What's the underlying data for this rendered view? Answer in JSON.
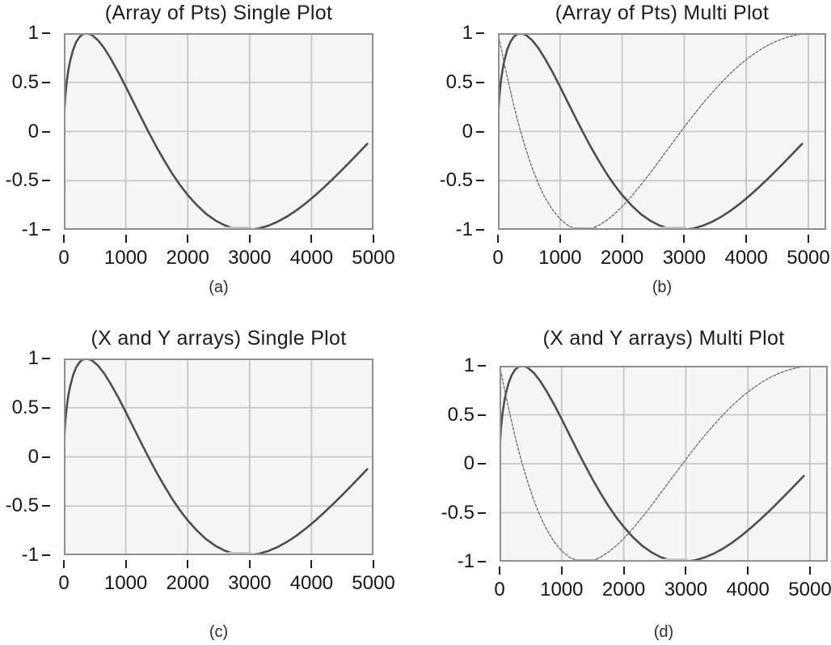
{
  "figure": {
    "description": "Four waveform graphs arranged in a 2 by 2 grid",
    "colors": {
      "page_background": "#ffffff",
      "plot_background": "#f5f5f5",
      "gridline": "#c6c6c6",
      "plot_border": "#8f8f8f",
      "sine_curve": "#4e4e4e",
      "cosine_curve": "#6b6b6b",
      "sine_min_highlight": "#c9c9c9",
      "cosine_min_highlight": "#a4a4a4",
      "tick_text": "#161616"
    }
  },
  "chart_data": {
    "type": "line",
    "grid": true,
    "xlim": [
      0,
      5000
    ],
    "ylim": [
      -1,
      1
    ],
    "x_tick_labels": [
      "0",
      "1000",
      "2000",
      "3000",
      "4000",
      "5000"
    ],
    "y_tick_labels": [
      "1",
      "0.5",
      "0",
      "-0.5",
      "-1"
    ],
    "series_library": {
      "sine": {
        "style": "thick",
        "min_flat_segment": {
          "x1": 2650,
          "x2": 3030,
          "y": -1
        },
        "points": [
          [
            0,
            0
          ],
          [
            10,
            0.235
          ],
          [
            25,
            0.373
          ],
          [
            50,
            0.524
          ],
          [
            75,
            0.632
          ],
          [
            100,
            0.714
          ],
          [
            150,
            0.833
          ],
          [
            200,
            0.911
          ],
          [
            250,
            0.96
          ],
          [
            300,
            0.988
          ],
          [
            365,
            1
          ],
          [
            450,
            0.983
          ],
          [
            550,
            0.929
          ],
          [
            650,
            0.849
          ],
          [
            750,
            0.749
          ],
          [
            875,
            0.609
          ],
          [
            1000,
            0.456
          ],
          [
            1125,
            0.297
          ],
          [
            1250,
            0.139
          ],
          [
            1375,
            -0.014
          ],
          [
            1500,
            -0.162
          ],
          [
            1625,
            -0.299
          ],
          [
            1750,
            -0.428
          ],
          [
            1875,
            -0.543
          ],
          [
            2000,
            -0.645
          ],
          [
            2150,
            -0.751
          ],
          [
            2300,
            -0.839
          ],
          [
            2450,
            -0.906
          ],
          [
            2600,
            -0.955
          ],
          [
            2750,
            -0.986
          ],
          [
            2875,
            -0.998
          ],
          [
            3000,
            -0.999
          ],
          [
            3150,
            -0.986
          ],
          [
            3300,
            -0.958
          ],
          [
            3450,
            -0.918
          ],
          [
            3600,
            -0.866
          ],
          [
            3750,
            -0.804
          ],
          [
            3900,
            -0.733
          ],
          [
            4050,
            -0.654
          ],
          [
            4200,
            -0.569
          ],
          [
            4350,
            -0.479
          ],
          [
            4500,
            -0.385
          ],
          [
            4650,
            -0.289
          ],
          [
            4800,
            -0.191
          ],
          [
            4900,
            -0.125
          ]
        ]
      },
      "cosine": {
        "style": "thin",
        "min_flat_segment": {
          "x1": 1210,
          "x2": 1590,
          "y": -1
        },
        "points": [
          [
            0,
            1
          ],
          [
            10,
            0.972
          ],
          [
            25,
            0.928
          ],
          [
            50,
            0.852
          ],
          [
            75,
            0.775
          ],
          [
            100,
            0.7
          ],
          [
            150,
            0.553
          ],
          [
            200,
            0.413
          ],
          [
            250,
            0.279
          ],
          [
            300,
            0.153
          ],
          [
            365,
            0
          ],
          [
            450,
            -0.182
          ],
          [
            550,
            -0.37
          ],
          [
            650,
            -0.528
          ],
          [
            750,
            -0.663
          ],
          [
            875,
            -0.793
          ],
          [
            1000,
            -0.89
          ],
          [
            1125,
            -0.955
          ],
          [
            1250,
            -0.99
          ],
          [
            1375,
            -1
          ],
          [
            1500,
            -0.987
          ],
          [
            1625,
            -0.954
          ],
          [
            1750,
            -0.904
          ],
          [
            1875,
            -0.84
          ],
          [
            2000,
            -0.764
          ],
          [
            2150,
            -0.66
          ],
          [
            2300,
            -0.545
          ],
          [
            2450,
            -0.423
          ],
          [
            2600,
            -0.296
          ],
          [
            2750,
            -0.167
          ],
          [
            2875,
            -0.061
          ],
          [
            3000,
            0.045
          ],
          [
            3150,
            0.167
          ],
          [
            3300,
            0.286
          ],
          [
            3450,
            0.395
          ],
          [
            3600,
            0.5
          ],
          [
            3750,
            0.595
          ],
          [
            3900,
            0.681
          ],
          [
            4050,
            0.756
          ],
          [
            4200,
            0.822
          ],
          [
            4350,
            0.878
          ],
          [
            4500,
            0.923
          ],
          [
            4650,
            0.957
          ],
          [
            4800,
            0.982
          ],
          [
            5000,
            0.998
          ]
        ]
      }
    },
    "panels": [
      {
        "caption": "(a)",
        "title": "(Array of Pts) Single Plot",
        "series": [
          "sine"
        ]
      },
      {
        "caption": "(b)",
        "title": "(Array of Pts) Multi Plot",
        "series": [
          "sine",
          "cosine"
        ]
      },
      {
        "caption": "(c)",
        "title": "(X and Y arrays) Single Plot",
        "series": [
          "sine"
        ]
      },
      {
        "caption": "(d)",
        "title": "(X and Y arrays) Multi Plot",
        "series": [
          "sine",
          "cosine"
        ]
      }
    ]
  }
}
